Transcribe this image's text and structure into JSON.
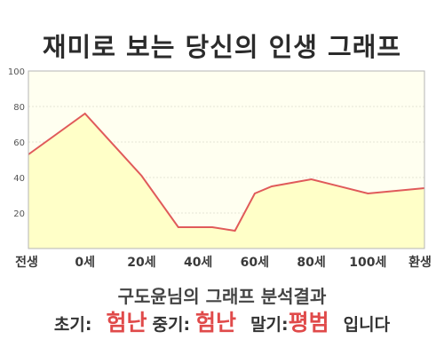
{
  "title": "재미로 보는 당신의 인생 그래프",
  "chart_data": {
    "type": "area",
    "x_labels": [
      "전생",
      "0세",
      "20세",
      "40세",
      "60세",
      "80세",
      "100세",
      "환생"
    ],
    "y_ticks": [
      20,
      40,
      60,
      80,
      100
    ],
    "ylim": [
      0,
      100
    ],
    "x": [
      -20,
      0,
      20,
      33,
      45,
      53,
      60,
      66,
      80,
      100,
      120
    ],
    "values": [
      53,
      76,
      41,
      12,
      12,
      10,
      31,
      35,
      39,
      31,
      34
    ],
    "line_color": "#e05a5a",
    "fill_color": "#ffffc8",
    "plot_bg": "#fffff0",
    "grid": true
  },
  "result": {
    "title": "구도윤님의 그래프 분석결과",
    "early_label": "초기:",
    "early_value": "험난",
    "middle_label": "중기:",
    "middle_value": "험난",
    "late_label": "말기:",
    "late_value": "평범",
    "suffix": "입니다"
  }
}
